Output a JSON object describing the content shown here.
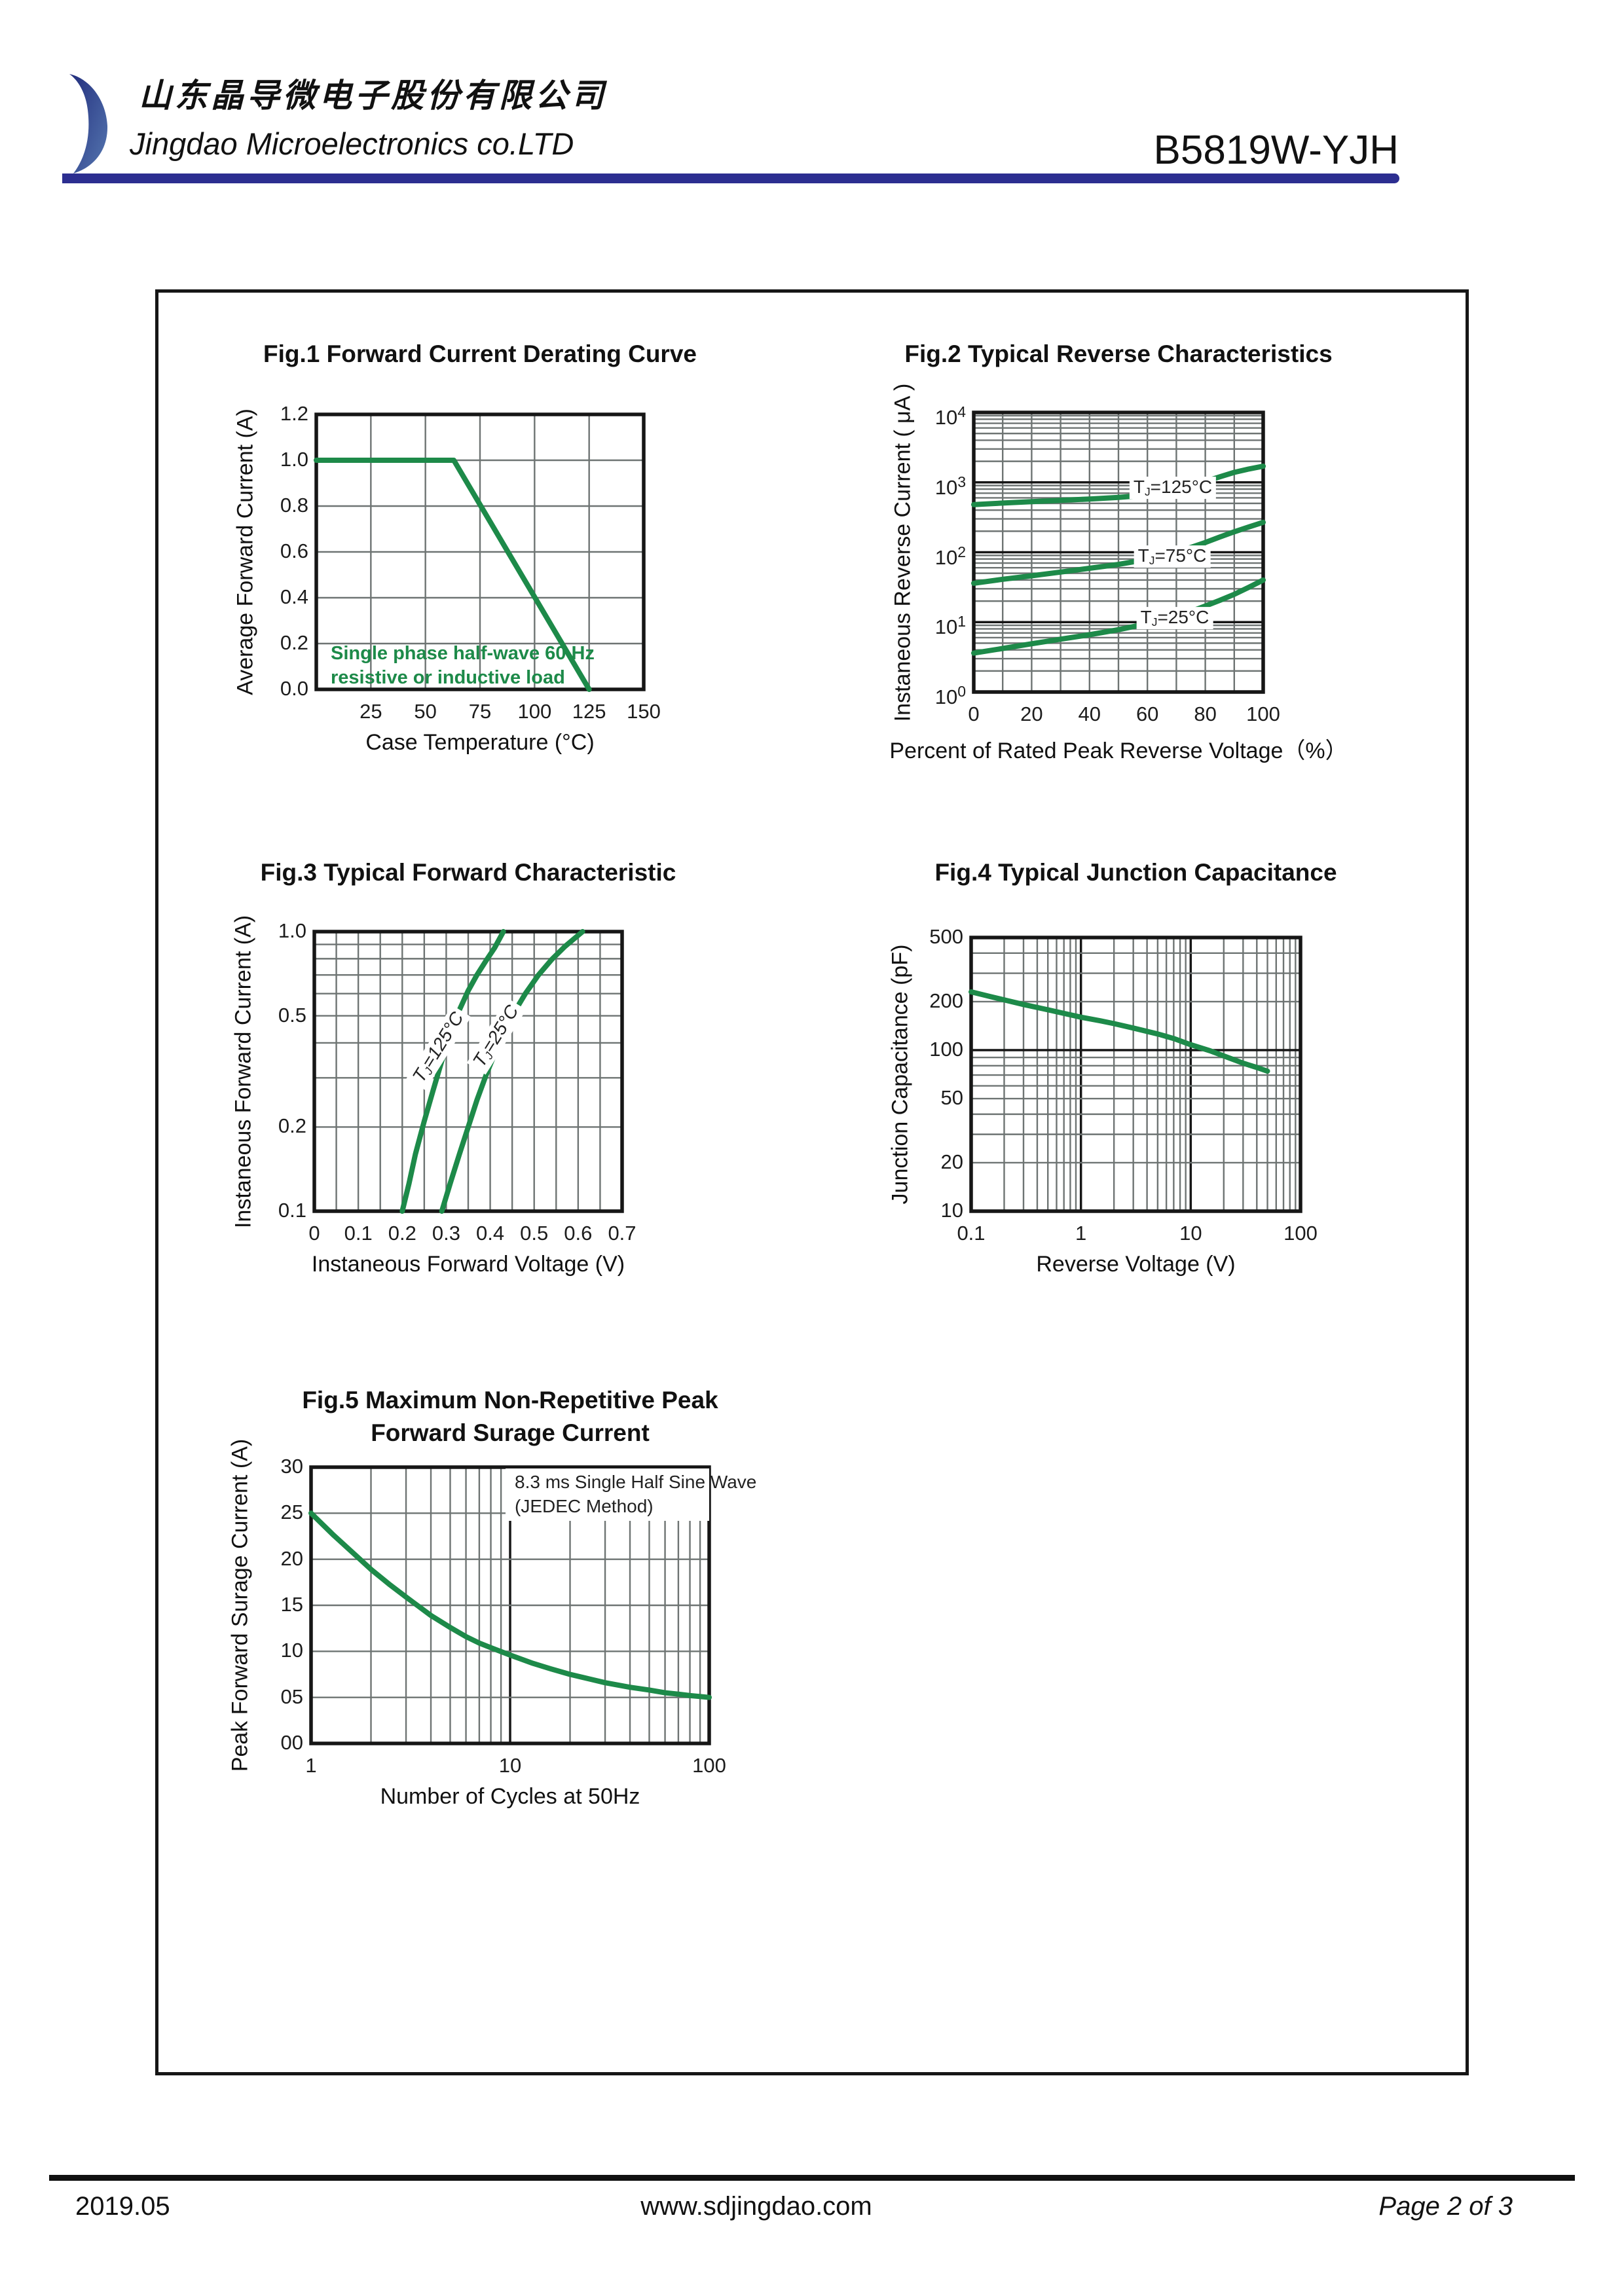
{
  "header": {
    "company_cn": "山东晶导微电子股份有限公司",
    "company_en": "Jingdao Microelectronics co.LTD",
    "part_number": "B5819W-YJH",
    "accent_bar_color": "#2c2e90"
  },
  "footer": {
    "date": "2019.05",
    "website": "www.sdjingdao.com",
    "page_label": "Page 2 of 3"
  },
  "colors": {
    "curve_green": "#1d8a49",
    "grid_gray": "#6e7473",
    "line_black": "#161616",
    "logo_dark": "#222d7d",
    "logo_light": "#5577b0"
  },
  "chart_data": [
    {
      "id": "fig1",
      "type": "line",
      "title": "Fig.1  Forward Current Derating Curve",
      "xlabel": "Case  Temperature (°C)",
      "ylabel": "Average Forward Current (A)",
      "x": {
        "scale": "linear",
        "min": 0,
        "max": 150,
        "grid_step": 25,
        "ticks": [
          {
            "v": 25,
            "label": "25"
          },
          {
            "v": 50,
            "label": "50"
          },
          {
            "v": 75,
            "label": "75"
          },
          {
            "v": 100,
            "label": "100"
          },
          {
            "v": 125,
            "label": "125"
          },
          {
            "v": 150,
            "label": "150"
          }
        ]
      },
      "y": {
        "scale": "linear",
        "min": 0,
        "max": 1.2,
        "grid_step": 0.2,
        "ticks": [
          {
            "v": 0,
            "label": "0.0"
          },
          {
            "v": 0.2,
            "label": "0.2"
          },
          {
            "v": 0.4,
            "label": "0.4"
          },
          {
            "v": 0.6,
            "label": "0.6"
          },
          {
            "v": 0.8,
            "label": "0.8"
          },
          {
            "v": 1.0,
            "label": "1.0"
          },
          {
            "v": 1.2,
            "label": "1.2"
          }
        ]
      },
      "series": [
        {
          "name": "forward-current-derating",
          "points": [
            [
              0,
              1.0
            ],
            [
              63,
              1.0
            ],
            [
              125,
              0
            ]
          ]
        }
      ],
      "annotations": [
        {
          "lines": [
            "Single phase half-wave 60 Hz",
            "resistive or inductive load"
          ],
          "color": "green",
          "bold": true
        }
      ]
    },
    {
      "id": "fig2",
      "type": "line",
      "title": "Fig.2  Typical Reverse Characteristics",
      "xlabel": "Percent of Rated Peak Reverse Voltage（%）",
      "ylabel": "Instaneous Reverse Current ( μA )",
      "x": {
        "scale": "linear",
        "min": 0,
        "max": 100,
        "grid_step": 10,
        "ticks": [
          {
            "v": 0,
            "label": "0"
          },
          {
            "v": 20,
            "label": "20"
          },
          {
            "v": 40,
            "label": "40"
          },
          {
            "v": 60,
            "label": "60"
          },
          {
            "v": 80,
            "label": "80"
          },
          {
            "v": 100,
            "label": "100"
          }
        ]
      },
      "y": {
        "scale": "log",
        "min": 1,
        "max": 10000,
        "ticks": [
          {
            "v": 1,
            "label": "10",
            "sup": "0"
          },
          {
            "v": 10,
            "label": "10",
            "sup": "1"
          },
          {
            "v": 100,
            "label": "10",
            "sup": "2"
          },
          {
            "v": 1000,
            "label": "10",
            "sup": "3"
          },
          {
            "v": 10000,
            "label": "10",
            "sup": "4"
          }
        ]
      },
      "series": [
        {
          "name": "TJ-125C",
          "points": [
            [
              0,
              480
            ],
            [
              10,
              505
            ],
            [
              20,
              530
            ],
            [
              30,
              552
            ],
            [
              40,
              578
            ],
            [
              50,
              610
            ],
            [
              55,
              632
            ],
            [
              60,
              665
            ],
            [
              65,
              715
            ],
            [
              70,
              790
            ],
            [
              75,
              900
            ],
            [
              80,
              1030
            ],
            [
              85,
              1200
            ],
            [
              90,
              1390
            ],
            [
              95,
              1550
            ],
            [
              100,
              1700
            ]
          ]
        },
        {
          "name": "TJ-75C",
          "points": [
            [
              0,
              36
            ],
            [
              10,
              41
            ],
            [
              20,
              46
            ],
            [
              30,
              52
            ],
            [
              40,
              59
            ],
            [
              50,
              67
            ],
            [
              60,
              79
            ],
            [
              65,
              88
            ],
            [
              70,
              100
            ],
            [
              75,
              117
            ],
            [
              80,
              138
            ],
            [
              85,
              165
            ],
            [
              90,
              196
            ],
            [
              95,
              230
            ],
            [
              100,
              268
            ]
          ]
        },
        {
          "name": "TJ-25C",
          "points": [
            [
              0,
              3.6
            ],
            [
              10,
              4.2
            ],
            [
              20,
              4.9
            ],
            [
              30,
              5.7
            ],
            [
              40,
              6.6
            ],
            [
              50,
              7.8
            ],
            [
              60,
              9.5
            ],
            [
              65,
              10.7
            ],
            [
              70,
              12.2
            ],
            [
              75,
              14.2
            ],
            [
              80,
              17
            ],
            [
              85,
              20.5
            ],
            [
              90,
              25
            ],
            [
              95,
              31.5
            ],
            [
              100,
              40
            ]
          ]
        }
      ],
      "curve_labels": [
        "T_J=125°C",
        "T_J=75°C",
        "T_J=25°C"
      ]
    },
    {
      "id": "fig3",
      "type": "line",
      "title": "Fig.3  Typical Forward Characteristic",
      "xlabel": "Instaneous Forward Voltage (V)",
      "ylabel": "Instaneous Forward Current  (A)",
      "x": {
        "scale": "linear",
        "min": 0,
        "max": 0.7,
        "grid_step": 0.05,
        "ticks": [
          {
            "v": 0,
            "label": "0"
          },
          {
            "v": 0.1,
            "label": "0.1"
          },
          {
            "v": 0.2,
            "label": "0.2"
          },
          {
            "v": 0.3,
            "label": "0.3"
          },
          {
            "v": 0.4,
            "label": "0.4"
          },
          {
            "v": 0.5,
            "label": "0.5"
          },
          {
            "v": 0.6,
            "label": "0.6"
          },
          {
            "v": 0.7,
            "label": "0.7"
          }
        ]
      },
      "y": {
        "scale": "log",
        "min": 0.1,
        "max": 1.0,
        "ticks": [
          {
            "v": 0.1,
            "label": "0.1"
          },
          {
            "v": 0.2,
            "label": "0.2"
          },
          {
            "v": 0.5,
            "label": "0.5"
          },
          {
            "v": 1.0,
            "label": "1.0"
          }
        ]
      },
      "series": [
        {
          "name": "TJ-125C",
          "points": [
            [
              0.2,
              0.1
            ],
            [
              0.215,
              0.125
            ],
            [
              0.23,
              0.16
            ],
            [
              0.25,
              0.21
            ],
            [
              0.27,
              0.27
            ],
            [
              0.29,
              0.345
            ],
            [
              0.31,
              0.43
            ],
            [
              0.33,
              0.525
            ],
            [
              0.35,
              0.615
            ],
            [
              0.37,
              0.7
            ],
            [
              0.39,
              0.785
            ],
            [
              0.41,
              0.875
            ],
            [
              0.43,
              1.0
            ]
          ]
        },
        {
          "name": "TJ-25C",
          "points": [
            [
              0.29,
              0.1
            ],
            [
              0.31,
              0.127
            ],
            [
              0.33,
              0.16
            ],
            [
              0.35,
              0.2
            ],
            [
              0.37,
              0.25
            ],
            [
              0.39,
              0.305
            ],
            [
              0.42,
              0.4
            ],
            [
              0.45,
              0.5
            ],
            [
              0.48,
              0.6
            ],
            [
              0.51,
              0.7
            ],
            [
              0.54,
              0.795
            ],
            [
              0.57,
              0.885
            ],
            [
              0.61,
              1.0
            ]
          ]
        }
      ],
      "curve_labels": [
        "T_J=125°C",
        "T_J=25°C"
      ]
    },
    {
      "id": "fig4",
      "type": "line",
      "title": "Fig.4  Typical Junction Capacitance",
      "xlabel": "Reverse  Voltage (V)",
      "ylabel": "Junction Capacitance (pF)",
      "x": {
        "scale": "log",
        "min": 0.1,
        "max": 100,
        "ticks": [
          {
            "v": 0.1,
            "label": "0.1"
          },
          {
            "v": 1,
            "label": "1"
          },
          {
            "v": 10,
            "label": "10"
          },
          {
            "v": 100,
            "label": "100"
          }
        ]
      },
      "y": {
        "scale": "log",
        "min": 10,
        "max": 500,
        "ticks": [
          {
            "v": 10,
            "label": "10"
          },
          {
            "v": 20,
            "label": "20"
          },
          {
            "v": 50,
            "label": "50"
          },
          {
            "v": 100,
            "label": "100"
          },
          {
            "v": 200,
            "label": "200"
          },
          {
            "v": 500,
            "label": "500"
          }
        ]
      },
      "series": [
        {
          "name": "junction-capacitance",
          "points": [
            [
              0.1,
              230
            ],
            [
              0.15,
              215
            ],
            [
              0.2,
              205
            ],
            [
              0.3,
              192
            ],
            [
              0.5,
              178
            ],
            [
              0.7,
              169
            ],
            [
              1,
              160
            ],
            [
              1.5,
              152
            ],
            [
              2,
              146
            ],
            [
              3,
              137
            ],
            [
              5,
              126
            ],
            [
              7,
              118
            ],
            [
              10,
              108
            ],
            [
              15,
              99
            ],
            [
              20,
              92
            ],
            [
              30,
              83
            ],
            [
              40,
              78
            ],
            [
              50,
              74
            ]
          ]
        }
      ]
    },
    {
      "id": "fig5",
      "type": "line",
      "title": "Fig.5  Maximum Non-Repetitive Peak\nForward Surage Current",
      "xlabel": "Number of Cycles at 50Hz",
      "ylabel": "Peak Forward Surage Current (A)",
      "x": {
        "scale": "log",
        "min": 1,
        "max": 100,
        "ticks": [
          {
            "v": 1,
            "label": "1"
          },
          {
            "v": 10,
            "label": "10"
          },
          {
            "v": 100,
            "label": "100"
          }
        ]
      },
      "y": {
        "scale": "linear",
        "min": 0,
        "max": 30,
        "grid_step": 5,
        "ticks": [
          {
            "v": 0,
            "label": "00"
          },
          {
            "v": 5,
            "label": "05"
          },
          {
            "v": 10,
            "label": "10"
          },
          {
            "v": 15,
            "label": "15"
          },
          {
            "v": 20,
            "label": "20"
          },
          {
            "v": 25,
            "label": "25"
          },
          {
            "v": 30,
            "label": "30"
          }
        ]
      },
      "series": [
        {
          "name": "peak-surge-current",
          "points": [
            [
              1,
              25
            ],
            [
              1.3,
              22.6
            ],
            [
              1.7,
              20.3
            ],
            [
              2,
              18.9
            ],
            [
              2.5,
              17.2
            ],
            [
              3,
              15.9
            ],
            [
              4,
              13.9
            ],
            [
              5,
              12.6
            ],
            [
              6,
              11.6
            ],
            [
              7,
              10.9
            ],
            [
              8,
              10.4
            ],
            [
              10,
              9.6
            ],
            [
              13,
              8.7
            ],
            [
              16,
              8.1
            ],
            [
              20,
              7.5
            ],
            [
              25,
              7.0
            ],
            [
              30,
              6.6
            ],
            [
              40,
              6.1
            ],
            [
              50,
              5.8
            ],
            [
              60,
              5.5
            ],
            [
              70,
              5.35
            ],
            [
              80,
              5.2
            ],
            [
              90,
              5.1
            ],
            [
              100,
              5.0
            ]
          ]
        }
      ],
      "annotations": [
        {
          "lines": [
            "8.3 ms Single Half Sine Wave",
            "(JEDEC Method)"
          ],
          "bg": "white"
        }
      ]
    }
  ]
}
